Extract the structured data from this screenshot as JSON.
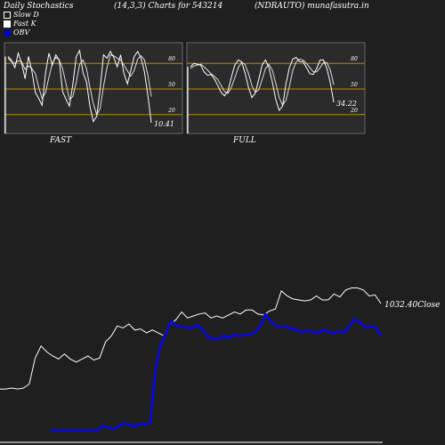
{
  "header": {
    "left": "Daily Stochastics",
    "center": "(14,3,3) Charts for 543214",
    "right": "(NDRAUTO) munafasutra.in"
  },
  "legend": [
    {
      "label": "Slow  D",
      "swatch": "open",
      "icon": "open-square-icon"
    },
    {
      "label": "Fast K",
      "swatch": "white",
      "icon": "white-square-icon"
    },
    {
      "label": "OBV",
      "swatch": "blue",
      "icon": "blue-dot-icon"
    }
  ],
  "colors": {
    "background": "#1f1f1f",
    "panel": "#2b2b2b",
    "panel_border": "#6a6a6a",
    "level_line": "#b8860b",
    "fast_line": "#ffffff",
    "slow_line": "#dddddd",
    "price_line": "#ffffff",
    "obv_line": "#0a0acc"
  },
  "chart_data": [
    {
      "type": "line",
      "title": "FAST",
      "ylim": [
        0,
        100
      ],
      "levels": [
        80,
        50,
        20
      ],
      "tick_labels": [
        "80",
        "50",
        "20"
      ],
      "last_value_label": "10.41",
      "series": [
        {
          "name": "Fast K",
          "values": [
            88,
            84,
            75,
            92,
            80,
            62,
            88,
            71,
            46,
            39,
            31,
            69,
            92,
            78,
            90,
            84,
            47,
            38,
            30,
            55,
            88,
            95,
            69,
            58,
            30,
            12,
            18,
            50,
            90,
            86,
            94,
            87,
            76,
            90,
            68,
            56,
            72,
            88,
            94,
            86,
            70,
            42,
            10.41
          ]
        },
        {
          "name": "Slow  D",
          "values": [
            86,
            82,
            80,
            83,
            82,
            73,
            77,
            74,
            68,
            52,
            39,
            46,
            64,
            80,
            87,
            84,
            74,
            56,
            38,
            41,
            58,
            79,
            84,
            74,
            52,
            33,
            20,
            27,
            53,
            75,
            90,
            89,
            86,
            84,
            78,
            71,
            65,
            72,
            85,
            89,
            84,
            66,
            41
          ]
        }
      ]
    },
    {
      "type": "line",
      "title": "FULL",
      "ylim": [
        0,
        100
      ],
      "levels": [
        80,
        50,
        20
      ],
      "tick_labels": [
        "80",
        "50",
        "20"
      ],
      "last_value_label": "34.22",
      "series": [
        {
          "name": "Fast K",
          "values": [
            76,
            80,
            79,
            78,
            70,
            66,
            67,
            62,
            54,
            46,
            42,
            48,
            64,
            78,
            84,
            82,
            69,
            52,
            40,
            45,
            61,
            78,
            84,
            75,
            58,
            38,
            25,
            30,
            56,
            75,
            85,
            87,
            82,
            82,
            75,
            68,
            67,
            74,
            84,
            84,
            74,
            57,
            34.22
          ]
        },
        {
          "name": "Slow  D",
          "values": [
            74,
            77,
            78,
            79,
            76,
            72,
            68,
            65,
            61,
            54,
            47,
            45,
            52,
            63,
            75,
            81,
            79,
            68,
            54,
            46,
            49,
            61,
            74,
            79,
            72,
            57,
            40,
            31,
            37,
            53,
            72,
            82,
            85,
            84,
            80,
            75,
            70,
            70,
            75,
            81,
            81,
            72,
            55
          ]
        }
      ]
    },
    {
      "type": "line",
      "last_value_label": "1032.40",
      "last_value_suffix": "Close",
      "series": [
        {
          "name": "Price",
          "values": [
            947,
            947,
            948,
            947,
            948,
            952,
            978,
            990,
            984,
            980,
            977,
            982,
            977,
            974,
            977,
            980,
            976,
            978,
            994,
            1000,
            1010,
            1008,
            1012,
            1006,
            1007,
            1003,
            1006,
            1003,
            1000,
            1012,
            1016,
            1024,
            1018,
            1020,
            1022,
            1023,
            1018,
            1020,
            1018,
            1021,
            1024,
            1022,
            1026,
            1026,
            1022,
            1021,
            1025,
            1027,
            1045,
            1040,
            1037,
            1036,
            1035,
            1036,
            1040,
            1036,
            1036,
            1042,
            1039,
            1046,
            1048,
            1048,
            1046,
            1040,
            1041,
            1032.4
          ]
        },
        {
          "name": "OBV",
          "values": [
            875,
            875,
            875,
            875,
            875,
            875,
            875,
            875,
            875,
            875,
            881,
            879,
            877,
            880,
            885,
            883,
            880,
            884,
            883,
            885,
            960,
            995,
            1011,
            1029,
            1023,
            1021,
            1020,
            1019,
            1024,
            1017,
            1007,
            1004,
            1004,
            1009,
            1005,
            1010,
            1008,
            1010,
            1010,
            1014,
            1022,
            1038,
            1029,
            1022,
            1021,
            1021,
            1018,
            1016,
            1013,
            1016,
            1014,
            1012,
            1017,
            1014,
            1012,
            1015,
            1013,
            1023,
            1032,
            1027,
            1020,
            1022,
            1020,
            1008
          ]
        }
      ]
    }
  ]
}
